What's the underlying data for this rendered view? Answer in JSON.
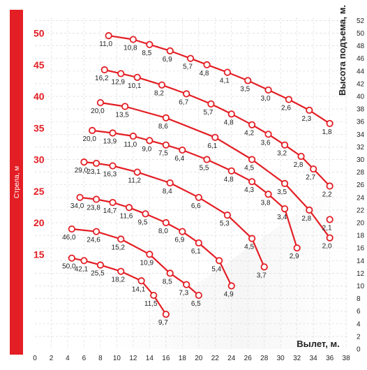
{
  "chart_data": {
    "type": "line",
    "xlabel": "Вылет, м.",
    "ylabel": "Высота подъема, м.",
    "side_label": "Стрела, м",
    "xlim": [
      0,
      38
    ],
    "ylim": [
      0,
      52
    ],
    "x_ticks": [
      "0",
      "2",
      "4",
      "6",
      "8",
      "10",
      "12",
      "14",
      "16",
      "18",
      "20",
      "22",
      "24",
      "26",
      "28",
      "30",
      "32",
      "34",
      "36",
      "38"
    ],
    "y_ticks": [
      "0",
      "2",
      "4",
      "6",
      "8",
      "10",
      "12",
      "14",
      "16",
      "18",
      "20",
      "22",
      "24",
      "26",
      "28",
      "30",
      "32",
      "34",
      "36",
      "38",
      "40",
      "42",
      "44",
      "46",
      "48",
      "50",
      "52"
    ],
    "boom_lengths": [
      {
        "label": "50",
        "y": 50
      },
      {
        "label": "45",
        "y": 45
      },
      {
        "label": "40",
        "y": 40
      },
      {
        "label": "35",
        "y": 35
      },
      {
        "label": "30",
        "y": 30
      },
      {
        "label": "25",
        "y": 25
      },
      {
        "label": "20",
        "y": 20
      },
      {
        "label": "15",
        "y": 15
      }
    ],
    "grid": true,
    "colors": {
      "curve": "#e31e24",
      "side_bar": "#e31e24",
      "boom_label": "#e31e24",
      "text": "#222222",
      "grid": "#d9d9d9"
    },
    "series": [
      {
        "boom": "50",
        "points": [
          {
            "x": 9.0,
            "y": 49.6,
            "label": "11,0"
          },
          {
            "x": 12.0,
            "y": 49.0,
            "label": "10,8"
          },
          {
            "x": 14.0,
            "y": 48.2,
            "label": "8,5"
          },
          {
            "x": 16.5,
            "y": 47.2,
            "label": "6,9"
          },
          {
            "x": 19.0,
            "y": 46.0,
            "label": "5,7"
          },
          {
            "x": 21.0,
            "y": 45.0,
            "label": "4,8"
          },
          {
            "x": 23.5,
            "y": 43.8,
            "label": "4,1"
          },
          {
            "x": 26.0,
            "y": 42.5,
            "label": "3,5"
          },
          {
            "x": 28.5,
            "y": 41.0,
            "label": "3,0"
          },
          {
            "x": 31.0,
            "y": 39.5,
            "label": "2,6"
          },
          {
            "x": 33.5,
            "y": 37.8,
            "label": "2,3"
          },
          {
            "x": 36.0,
            "y": 35.7,
            "label": "1,8"
          }
        ]
      },
      {
        "boom": "45",
        "points": [
          {
            "x": 8.5,
            "y": 44.2,
            "label": "16,2"
          },
          {
            "x": 10.5,
            "y": 43.6,
            "label": "12,9"
          },
          {
            "x": 12.5,
            "y": 43.0,
            "label": "10,1"
          },
          {
            "x": 15.5,
            "y": 41.8,
            "label": "8,2"
          },
          {
            "x": 18.5,
            "y": 40.4,
            "label": "6,7"
          },
          {
            "x": 21.5,
            "y": 38.8,
            "label": "5,7"
          },
          {
            "x": 24.0,
            "y": 37.2,
            "label": "4,8"
          },
          {
            "x": 26.5,
            "y": 35.5,
            "label": "4,2"
          },
          {
            "x": 28.5,
            "y": 34.0,
            "label": "3,6"
          },
          {
            "x": 30.5,
            "y": 32.3,
            "label": "3,2"
          },
          {
            "x": 32.5,
            "y": 30.5,
            "label": "2,8"
          },
          {
            "x": 34.0,
            "y": 28.5,
            "label": "2,7"
          },
          {
            "x": 36.0,
            "y": 25.8,
            "label": "2,2"
          }
        ]
      },
      {
        "boom": "40",
        "points": [
          {
            "x": 8.0,
            "y": 39.0,
            "label": "20,0"
          },
          {
            "x": 11.0,
            "y": 38.4,
            "label": "13,5"
          },
          {
            "x": 16.0,
            "y": 36.6,
            "label": "8,6"
          },
          {
            "x": 22.0,
            "y": 33.5,
            "label": "6,1"
          },
          {
            "x": 26.5,
            "y": 30.0,
            "label": "4,5"
          },
          {
            "x": 30.5,
            "y": 26.2,
            "label": "3,5"
          },
          {
            "x": 33.5,
            "y": 22.0,
            "label": "2,8"
          },
          {
            "x": 36.0,
            "y": 17.6,
            "label": "2,0"
          }
        ]
      },
      {
        "boom": "35",
        "points": [
          {
            "x": 7.0,
            "y": 34.6,
            "label": "20,0"
          },
          {
            "x": 9.5,
            "y": 34.2,
            "label": "13,9"
          },
          {
            "x": 12.0,
            "y": 33.7,
            "label": "11,0"
          },
          {
            "x": 14.0,
            "y": 33.0,
            "label": "9,0"
          },
          {
            "x": 16.0,
            "y": 32.3,
            "label": "7,5"
          },
          {
            "x": 18.0,
            "y": 31.5,
            "label": "6,4"
          },
          {
            "x": 21.0,
            "y": 30.0,
            "label": "5,5"
          },
          {
            "x": 24.0,
            "y": 28.2,
            "label": "4,8"
          },
          {
            "x": 26.5,
            "y": 26.5,
            "label": "4,3"
          },
          {
            "x": 28.5,
            "y": 24.5,
            "label": "3,8"
          },
          {
            "x": 30.5,
            "y": 22.2,
            "label": "3,4"
          },
          {
            "x": 32.0,
            "y": 16.0,
            "label": "2,9"
          }
        ]
      },
      {
        "boom": "30",
        "points": [
          {
            "x": 6.0,
            "y": 29.6,
            "label": "29,0"
          },
          {
            "x": 7.5,
            "y": 29.4,
            "label": "23,1"
          },
          {
            "x": 9.5,
            "y": 29.0,
            "label": "16,3"
          },
          {
            "x": 12.5,
            "y": 28.0,
            "label": "11,2"
          },
          {
            "x": 16.5,
            "y": 26.3,
            "label": "8,4"
          },
          {
            "x": 20.0,
            "y": 24.0,
            "label": "6,6"
          },
          {
            "x": 23.5,
            "y": 21.2,
            "label": "5,3"
          },
          {
            "x": 26.5,
            "y": 17.5,
            "label": "4,5"
          },
          {
            "x": 28.0,
            "y": 13.0,
            "label": "3,7"
          },
          {
            "x": 36.0,
            "y": 20.5,
            "label": "2,1"
          }
        ]
      },
      {
        "boom": "25",
        "points": [
          {
            "x": 5.5,
            "y": 24.0,
            "label": "34,0"
          },
          {
            "x": 7.5,
            "y": 23.7,
            "label": "23,8"
          },
          {
            "x": 9.5,
            "y": 23.2,
            "label": "14,7"
          },
          {
            "x": 11.5,
            "y": 22.4,
            "label": "11,6"
          },
          {
            "x": 13.5,
            "y": 21.4,
            "label": "9,5"
          },
          {
            "x": 16.0,
            "y": 20.0,
            "label": "8,0"
          },
          {
            "x": 18.0,
            "y": 18.6,
            "label": "6,9"
          },
          {
            "x": 20.0,
            "y": 16.8,
            "label": "6,1"
          },
          {
            "x": 22.5,
            "y": 14.0,
            "label": "5,4"
          },
          {
            "x": 24.0,
            "y": 10.0,
            "label": "4,9"
          }
        ]
      },
      {
        "boom": "20",
        "points": [
          {
            "x": 4.5,
            "y": 19.0,
            "label": "46,0"
          },
          {
            "x": 7.5,
            "y": 18.6,
            "label": "24,6"
          },
          {
            "x": 10.5,
            "y": 17.4,
            "label": "15,2"
          },
          {
            "x": 14.0,
            "y": 15.0,
            "label": "10,9"
          },
          {
            "x": 16.5,
            "y": 12.0,
            "label": "8,5"
          },
          {
            "x": 18.5,
            "y": 10.2,
            "label": "7,3"
          },
          {
            "x": 20.0,
            "y": 8.5,
            "label": "6,5"
          }
        ]
      },
      {
        "boom": "15",
        "points": [
          {
            "x": 4.5,
            "y": 14.4,
            "label": "50,0"
          },
          {
            "x": 6.0,
            "y": 14.0,
            "label": "42,1"
          },
          {
            "x": 8.0,
            "y": 13.3,
            "label": "25,5"
          },
          {
            "x": 10.5,
            "y": 12.3,
            "label": "18,2"
          },
          {
            "x": 13.0,
            "y": 10.8,
            "label": "14,1"
          },
          {
            "x": 14.5,
            "y": 8.5,
            "label": "11,5"
          },
          {
            "x": 16.0,
            "y": 5.5,
            "label": "9,7"
          }
        ]
      }
    ]
  }
}
